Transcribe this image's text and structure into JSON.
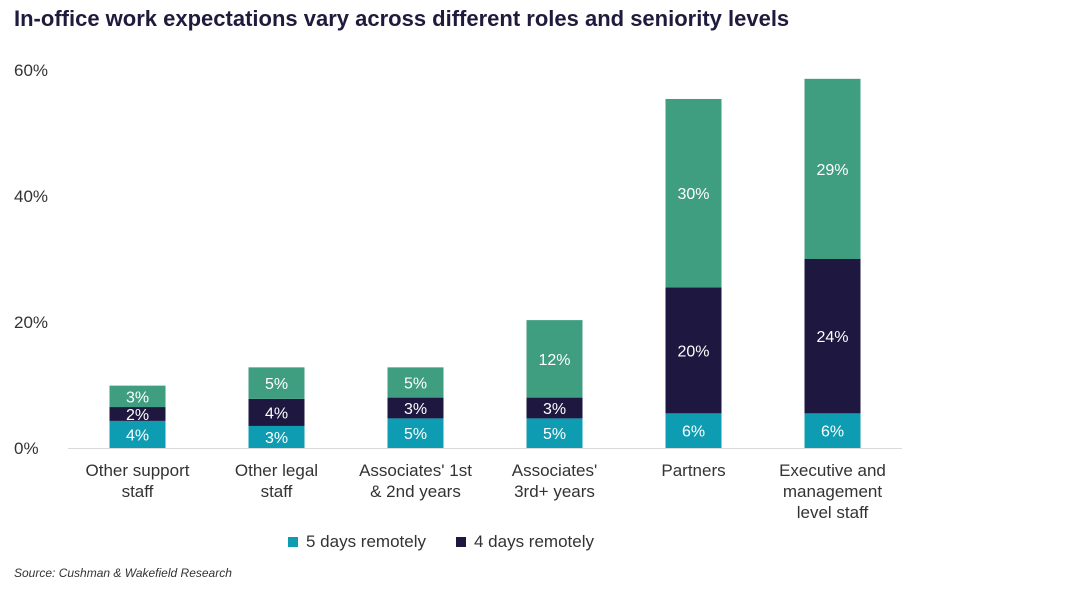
{
  "chart_data": {
    "type": "bar",
    "stacked": true,
    "title": "In-office work expectations vary across different roles and seniority levels",
    "categories": [
      [
        "Other support",
        "staff"
      ],
      [
        "Other legal",
        "staff"
      ],
      [
        "Associates' 1st",
        "& 2nd years"
      ],
      [
        "Associates'",
        "3rd+ years"
      ],
      [
        "Partners"
      ],
      [
        "Executive and",
        "management",
        "level staff"
      ]
    ],
    "series": [
      {
        "name": "5 days remotely",
        "color": "#0e9cb3",
        "values": [
          4.3,
          3.5,
          4.7,
          4.7,
          5.5,
          5.5
        ],
        "labels": [
          "4%",
          "3%",
          "5%",
          "5%",
          "6%",
          "6%"
        ]
      },
      {
        "name": "4 days remotely",
        "color": "#1e173f",
        "values": [
          2.2,
          4.3,
          3.3,
          3.3,
          20.0,
          24.5
        ],
        "labels": [
          "2%",
          "4%",
          "3%",
          "3%",
          "20%",
          "24%"
        ]
      },
      {
        "name": "",
        "color": "#3f9d80",
        "values": [
          3.4,
          5.0,
          4.8,
          12.3,
          29.9,
          28.6
        ],
        "labels": [
          "3%",
          "5%",
          "5%",
          "12%",
          "30%",
          "29%"
        ]
      }
    ],
    "legend_series": [
      0,
      1
    ],
    "yticks": [
      0,
      20,
      40,
      60
    ],
    "ytick_labels": [
      "0%",
      "20%",
      "40%",
      "60%"
    ],
    "ylim": [
      0,
      60
    ],
    "xlabel": "",
    "ylabel": "",
    "legend_position": "bottom-center"
  },
  "source": "Source: Cushman & Wakefield Research"
}
